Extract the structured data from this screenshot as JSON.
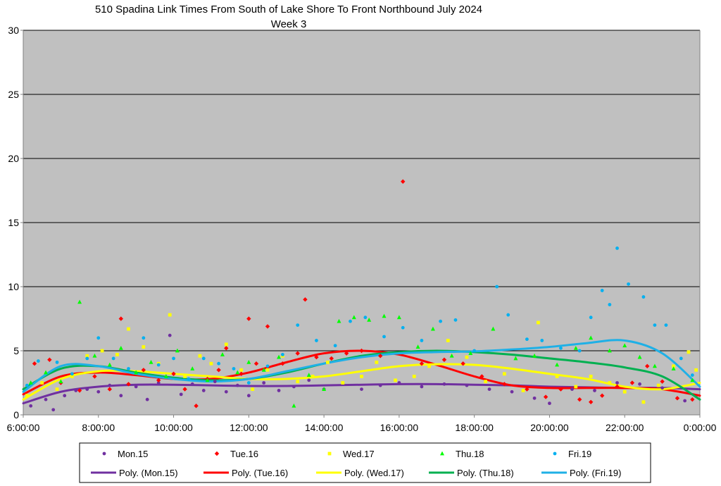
{
  "chart_data": {
    "type": "scatter",
    "title_line1": "510 Spadina Link Times From South of Lake Shore To Front Northbound July 2024",
    "title_line2": "Week 3",
    "xlabel": "",
    "ylabel": "",
    "xlim": [
      6,
      24
    ],
    "ylim": [
      0,
      30
    ],
    "x_tick_labels": [
      "6:00:00",
      "8:00:00",
      "10:00:00",
      "12:00:00",
      "14:00:00",
      "16:00:00",
      "18:00:00",
      "20:00:00",
      "22:00:00",
      "0:00:00"
    ],
    "y_tick_labels": [
      "0",
      "5",
      "10",
      "15",
      "20",
      "25",
      "30"
    ],
    "grid": true,
    "plot_background": "#c0c0c0",
    "legend_position": "bottom",
    "series": [
      {
        "name": "Mon.15",
        "marker": "circle",
        "color": "#7030a0",
        "points": [
          [
            6.2,
            0.7
          ],
          [
            6.6,
            1.2
          ],
          [
            6.8,
            0.4
          ],
          [
            7.1,
            1.5
          ],
          [
            7.4,
            1.9
          ],
          [
            7.7,
            2.0
          ],
          [
            8.0,
            1.8
          ],
          [
            8.3,
            2.3
          ],
          [
            8.6,
            1.5
          ],
          [
            9.0,
            2.2
          ],
          [
            9.3,
            1.2
          ],
          [
            9.6,
            2.5
          ],
          [
            9.9,
            6.2
          ],
          [
            10.2,
            1.6
          ],
          [
            10.5,
            2.4
          ],
          [
            10.8,
            1.9
          ],
          [
            11.1,
            2.6
          ],
          [
            11.4,
            1.8
          ],
          [
            11.7,
            2.3
          ],
          [
            12.0,
            1.5
          ],
          [
            12.4,
            2.5
          ],
          [
            12.8,
            1.9
          ],
          [
            13.2,
            2.2
          ],
          [
            13.6,
            2.7
          ],
          [
            14.0,
            2.0
          ],
          [
            14.5,
            2.4
          ],
          [
            15.0,
            2.0
          ],
          [
            15.5,
            2.3
          ],
          [
            16.0,
            2.5
          ],
          [
            16.6,
            2.2
          ],
          [
            17.2,
            2.4
          ],
          [
            17.8,
            2.3
          ],
          [
            18.4,
            2.0
          ],
          [
            19.0,
            1.8
          ],
          [
            19.6,
            1.3
          ],
          [
            20.0,
            0.9
          ],
          [
            20.6,
            2.0
          ],
          [
            21.2,
            1.9
          ],
          [
            21.8,
            2.5
          ],
          [
            22.4,
            2.4
          ],
          [
            23.0,
            2.1
          ],
          [
            23.6,
            1.1
          ]
        ]
      },
      {
        "name": "Tue.16",
        "marker": "diamond",
        "color": "#ff0000",
        "points": [
          [
            6.3,
            4.0
          ],
          [
            6.7,
            4.3
          ],
          [
            7.0,
            2.5
          ],
          [
            7.5,
            1.9
          ],
          [
            7.9,
            3.0
          ],
          [
            8.3,
            2.0
          ],
          [
            8.6,
            7.5
          ],
          [
            8.8,
            2.4
          ],
          [
            9.2,
            3.5
          ],
          [
            9.6,
            2.7
          ],
          [
            10.0,
            3.2
          ],
          [
            10.3,
            2.0
          ],
          [
            10.6,
            0.7
          ],
          [
            10.9,
            2.8
          ],
          [
            11.2,
            3.5
          ],
          [
            11.4,
            5.2
          ],
          [
            11.8,
            3.2
          ],
          [
            12.0,
            7.5
          ],
          [
            12.2,
            4.0
          ],
          [
            12.5,
            6.9
          ],
          [
            12.9,
            4.0
          ],
          [
            13.3,
            4.8
          ],
          [
            13.5,
            9.0
          ],
          [
            13.8,
            4.5
          ],
          [
            14.2,
            4.4
          ],
          [
            14.6,
            4.8
          ],
          [
            15.0,
            5.0
          ],
          [
            15.5,
            4.6
          ],
          [
            16.1,
            18.2
          ],
          [
            16.6,
            4.0
          ],
          [
            17.2,
            4.3
          ],
          [
            17.7,
            4.0
          ],
          [
            18.2,
            3.0
          ],
          [
            18.8,
            2.4
          ],
          [
            19.4,
            2.0
          ],
          [
            19.9,
            1.4
          ],
          [
            20.3,
            2.0
          ],
          [
            20.8,
            1.2
          ],
          [
            21.1,
            1.0
          ],
          [
            21.4,
            1.5
          ],
          [
            21.8,
            2.2
          ],
          [
            22.2,
            2.5
          ],
          [
            22.6,
            3.8
          ],
          [
            23.0,
            2.6
          ],
          [
            23.4,
            1.3
          ],
          [
            23.8,
            1.2
          ]
        ]
      },
      {
        "name": "Wed.17",
        "marker": "square",
        "color": "#ffff00",
        "points": [
          [
            6.1,
            1.5
          ],
          [
            6.5,
            2.5
          ],
          [
            6.9,
            2.0
          ],
          [
            7.3,
            3.0
          ],
          [
            7.7,
            4.6
          ],
          [
            8.1,
            5.0
          ],
          [
            8.5,
            4.7
          ],
          [
            8.8,
            6.7
          ],
          [
            9.2,
            5.3
          ],
          [
            9.6,
            4.0
          ],
          [
            9.9,
            7.8
          ],
          [
            10.3,
            3.0
          ],
          [
            10.7,
            4.6
          ],
          [
            11.0,
            4.0
          ],
          [
            11.4,
            5.5
          ],
          [
            11.8,
            3.5
          ],
          [
            12.1,
            2.0
          ],
          [
            12.5,
            3.5
          ],
          [
            12.9,
            4.6
          ],
          [
            13.3,
            2.6
          ],
          [
            13.7,
            3.0
          ],
          [
            14.1,
            4.1
          ],
          [
            14.5,
            2.5
          ],
          [
            15.0,
            3.0
          ],
          [
            15.4,
            4.1
          ],
          [
            15.9,
            2.7
          ],
          [
            16.4,
            3.0
          ],
          [
            16.8,
            3.8
          ],
          [
            17.3,
            5.8
          ],
          [
            17.8,
            4.5
          ],
          [
            18.3,
            2.6
          ],
          [
            18.8,
            3.2
          ],
          [
            19.3,
            1.9
          ],
          [
            19.7,
            7.2
          ],
          [
            20.2,
            3.0
          ],
          [
            20.7,
            2.2
          ],
          [
            21.1,
            3.0
          ],
          [
            21.6,
            2.5
          ],
          [
            22.0,
            1.8
          ],
          [
            22.5,
            1.0
          ],
          [
            22.9,
            2.3
          ],
          [
            23.3,
            3.8
          ],
          [
            23.7,
            4.9
          ],
          [
            23.9,
            3.5
          ]
        ]
      },
      {
        "name": "Thu.18",
        "marker": "triangle",
        "color": "#00ff00",
        "points": [
          [
            6.2,
            2.5
          ],
          [
            6.6,
            3.3
          ],
          [
            7.0,
            2.6
          ],
          [
            7.5,
            8.8
          ],
          [
            7.9,
            4.6
          ],
          [
            8.3,
            3.9
          ],
          [
            8.6,
            5.2
          ],
          [
            9.0,
            3.3
          ],
          [
            9.4,
            4.1
          ],
          [
            9.8,
            3.0
          ],
          [
            10.1,
            5.0
          ],
          [
            10.5,
            3.6
          ],
          [
            10.9,
            2.7
          ],
          [
            11.3,
            4.7
          ],
          [
            11.7,
            3.3
          ],
          [
            12.0,
            4.1
          ],
          [
            12.4,
            3.5
          ],
          [
            12.8,
            4.5
          ],
          [
            13.2,
            0.7
          ],
          [
            13.6,
            3.1
          ],
          [
            14.0,
            2.0
          ],
          [
            14.4,
            7.3
          ],
          [
            14.8,
            7.6
          ],
          [
            15.2,
            7.4
          ],
          [
            15.6,
            7.7
          ],
          [
            16.0,
            7.6
          ],
          [
            16.5,
            5.3
          ],
          [
            16.9,
            6.7
          ],
          [
            17.4,
            4.6
          ],
          [
            17.9,
            4.8
          ],
          [
            18.5,
            6.7
          ],
          [
            19.1,
            4.4
          ],
          [
            19.6,
            4.6
          ],
          [
            20.2,
            3.9
          ],
          [
            20.7,
            5.2
          ],
          [
            21.1,
            6.0
          ],
          [
            21.6,
            5.0
          ],
          [
            22.0,
            5.4
          ],
          [
            22.4,
            4.5
          ],
          [
            22.8,
            3.8
          ],
          [
            23.3,
            3.6
          ],
          [
            23.8,
            2.7
          ]
        ]
      },
      {
        "name": "Fri.19",
        "marker": "circle",
        "color": "#00b0f0",
        "points": [
          [
            6.1,
            2.3
          ],
          [
            6.4,
            4.2
          ],
          [
            6.9,
            4.1
          ],
          [
            7.3,
            3.2
          ],
          [
            7.7,
            4.4
          ],
          [
            8.0,
            6.0
          ],
          [
            8.4,
            4.4
          ],
          [
            8.8,
            3.6
          ],
          [
            9.2,
            6.0
          ],
          [
            9.6,
            3.9
          ],
          [
            10.0,
            4.4
          ],
          [
            10.4,
            2.8
          ],
          [
            10.8,
            4.4
          ],
          [
            11.2,
            4.0
          ],
          [
            11.6,
            3.6
          ],
          [
            12.0,
            2.5
          ],
          [
            12.5,
            3.8
          ],
          [
            12.9,
            4.7
          ],
          [
            13.3,
            7.0
          ],
          [
            13.8,
            5.8
          ],
          [
            14.3,
            5.4
          ],
          [
            14.7,
            7.3
          ],
          [
            15.1,
            7.6
          ],
          [
            15.6,
            6.1
          ],
          [
            16.1,
            6.8
          ],
          [
            16.6,
            5.8
          ],
          [
            17.1,
            7.3
          ],
          [
            17.5,
            7.4
          ],
          [
            18.0,
            5.0
          ],
          [
            18.6,
            10.0
          ],
          [
            18.9,
            7.8
          ],
          [
            19.4,
            5.9
          ],
          [
            19.8,
            5.8
          ],
          [
            20.3,
            5.2
          ],
          [
            20.8,
            5.0
          ],
          [
            21.1,
            7.6
          ],
          [
            21.4,
            9.7
          ],
          [
            21.6,
            8.6
          ],
          [
            21.8,
            13.0
          ],
          [
            22.1,
            10.2
          ],
          [
            22.5,
            9.2
          ],
          [
            22.8,
            7.0
          ],
          [
            23.1,
            7.0
          ],
          [
            23.5,
            4.4
          ],
          [
            23.8,
            3.1
          ]
        ]
      }
    ],
    "trendlines": [
      {
        "name": "Poly. (Mon.15)",
        "color": "#7030a0",
        "x": [
          6,
          7,
          8,
          9,
          10,
          11,
          12,
          13,
          14,
          15,
          16,
          17,
          18,
          19,
          20,
          21,
          22,
          23,
          24
        ],
        "y": [
          0.9,
          1.8,
          2.2,
          2.35,
          2.35,
          2.3,
          2.25,
          2.25,
          2.3,
          2.35,
          2.4,
          2.4,
          2.35,
          2.3,
          2.2,
          2.15,
          2.1,
          2.1,
          2.0
        ]
      },
      {
        "name": "Poly. (Tue.16)",
        "color": "#ff0000",
        "x": [
          6,
          7,
          8,
          9,
          10,
          11,
          12,
          13,
          14,
          15,
          16,
          17,
          18,
          19,
          20,
          21,
          22,
          23,
          24
        ],
        "y": [
          1.6,
          3.0,
          3.3,
          3.1,
          2.8,
          2.8,
          3.3,
          4.1,
          4.8,
          5.0,
          4.7,
          3.9,
          3.0,
          2.3,
          2.1,
          2.1,
          2.1,
          2.0,
          1.5
        ]
      },
      {
        "name": "Poly. (Wed.17)",
        "color": "#ffff00",
        "x": [
          6,
          7,
          8,
          9,
          10,
          11,
          12,
          13,
          14,
          15,
          16,
          17,
          18,
          19,
          20,
          21,
          22,
          23,
          24
        ],
        "y": [
          1.2,
          2.8,
          3.4,
          3.4,
          3.2,
          3.0,
          2.8,
          2.8,
          3.0,
          3.4,
          3.8,
          3.95,
          3.9,
          3.6,
          3.2,
          2.8,
          2.2,
          2.0,
          2.5
        ]
      },
      {
        "name": "Poly. (Thu.18)",
        "color": "#00b050",
        "x": [
          6,
          7,
          8,
          9,
          10,
          11,
          12,
          13,
          14,
          15,
          16,
          17,
          18,
          19,
          20,
          21,
          22,
          23,
          24
        ],
        "y": [
          2.0,
          3.6,
          3.8,
          3.3,
          2.9,
          2.7,
          2.8,
          3.3,
          4.0,
          4.6,
          4.9,
          5.0,
          4.9,
          4.7,
          4.4,
          4.1,
          3.7,
          3.0,
          1.2
        ]
      },
      {
        "name": "Poly. (Fri.19)",
        "color": "#1fb0e6",
        "x": [
          6,
          7,
          8,
          9,
          10,
          11,
          12,
          13,
          14,
          15,
          16,
          17,
          18,
          19,
          20,
          21,
          22,
          23,
          24
        ],
        "y": [
          1.8,
          3.8,
          3.8,
          3.2,
          2.8,
          2.6,
          2.8,
          3.4,
          4.0,
          4.5,
          4.8,
          4.9,
          4.95,
          5.1,
          5.3,
          5.6,
          5.8,
          4.8,
          2.2
        ]
      }
    ]
  }
}
